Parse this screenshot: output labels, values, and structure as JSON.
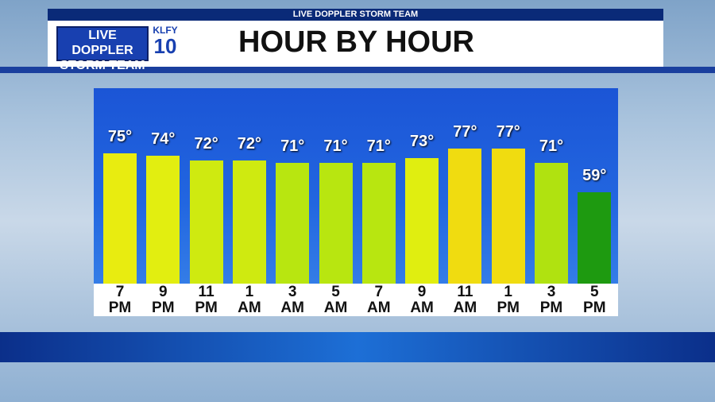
{
  "header": {
    "strip": "LIVE DOPPLER STORM TEAM",
    "logo_line1": "LIVE DOPPLER",
    "logo_line2": "STORM TEAM",
    "station": "KLFY",
    "channel": "10"
  },
  "chart_data": {
    "type": "bar",
    "title": "HOUR BY HOUR",
    "categories": [
      "7 PM",
      "9 PM",
      "11 PM",
      "1 AM",
      "3 AM",
      "5 AM",
      "7 AM",
      "9 AM",
      "11 AM",
      "1 PM",
      "3 PM",
      "5 PM"
    ],
    "values": [
      75,
      74,
      72,
      72,
      71,
      71,
      71,
      73,
      77,
      77,
      71,
      59
    ],
    "value_labels": [
      "75°",
      "74°",
      "72°",
      "72°",
      "71°",
      "71°",
      "71°",
      "73°",
      "77°",
      "77°",
      "71°",
      "59°"
    ],
    "colors": [
      "#e8ec10",
      "#e2ee10",
      "#cfea10",
      "#cfea10",
      "#b8e610",
      "#b8e610",
      "#b8e610",
      "#e0ee10",
      "#f0dc10",
      "#f0dc10",
      "#b0e210",
      "#1e9a10"
    ]
  }
}
